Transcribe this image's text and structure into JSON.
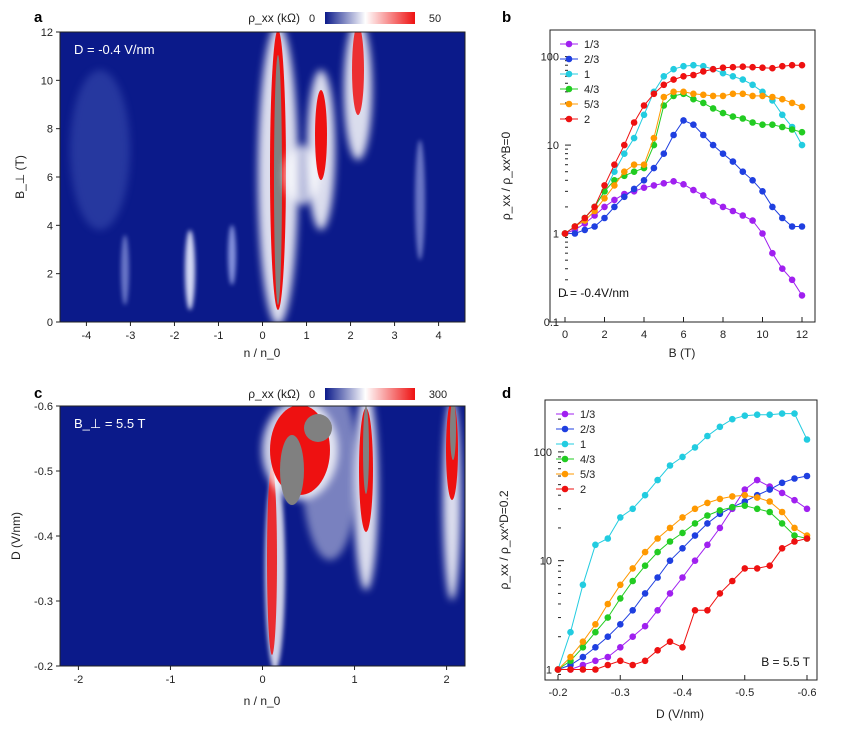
{
  "panels": {
    "a": {
      "label": "a",
      "annotation": "D = -0.4 V/nm",
      "colorbar": {
        "label": "ρ_xx (kΩ)",
        "min": "0",
        "max": "50"
      },
      "xlabel": "n / n_0",
      "ylabel": "B_⊥ (T)",
      "xticks": [
        "-4",
        "-3",
        "-2",
        "-1",
        "0",
        "1",
        "2",
        "3",
        "4"
      ],
      "yticks": [
        "0",
        "2",
        "4",
        "6",
        "8",
        "10",
        "12"
      ]
    },
    "b": {
      "label": "b",
      "annotation": "D = -0.4V/nm",
      "xlabel": "B (T)",
      "ylabel": "ρ_xx / ρ_xx^B=0",
      "xticks": [
        "0",
        "2",
        "4",
        "6",
        "8",
        "10",
        "12"
      ],
      "yticks": [
        "0.1",
        "1",
        "10",
        "100"
      ]
    },
    "c": {
      "label": "c",
      "annotation": "B_⊥ = 5.5 T",
      "colorbar": {
        "label": "ρ_xx (kΩ)",
        "min": "0",
        "max": "300"
      },
      "xlabel": "n / n_0",
      "ylabel": "D (V/nm)",
      "xticks": [
        "-2",
        "-1",
        "0",
        "1",
        "2"
      ],
      "yticks": [
        "-0.6",
        "-0.5",
        "-0.4",
        "-0.3",
        "-0.2"
      ]
    },
    "d": {
      "label": "d",
      "annotation": "B = 5.5 T",
      "xlabel": "D (V/nm)",
      "ylabel": "ρ_xx / ρ_xx^D=0.2",
      "xticks": [
        "-0.2",
        "-0.3",
        "-0.4",
        "-0.5",
        "-0.6"
      ],
      "yticks": [
        "1",
        "10",
        "100"
      ]
    }
  },
  "colors": {
    "1/3": "#a020f0",
    "2/3": "#1f3fe0",
    "1": "#22cce0",
    "4/3": "#22cc22",
    "5/3": "#ff9900",
    "2": "#ee1111",
    "map_low": "#0b1a8a",
    "map_high": "#ee1111",
    "map_over": "#808080"
  },
  "chart_data": [
    {
      "type": "heatmap",
      "panel": "a",
      "title": "",
      "xlabel": "n / n_0",
      "ylabel": "B_⊥ (T)",
      "xlim": [
        -4.6,
        4.6
      ],
      "ylim": [
        0,
        12
      ],
      "colorbar_range_kohm": [
        0,
        50
      ],
      "features": [
        {
          "n": 0,
          "B_range": [
            0,
            11.5
          ],
          "level": "over-range"
        },
        {
          "n": 1,
          "B_range": [
            3.5,
            10
          ],
          "level": "high"
        },
        {
          "n": 2,
          "B_range": [
            5,
            12
          ],
          "level": "high"
        },
        {
          "n": -2,
          "B_range": [
            0.5,
            3
          ],
          "level": "weak"
        }
      ]
    },
    {
      "type": "line",
      "panel": "b",
      "title": "",
      "xlabel": "B (T)",
      "ylabel": "ρ_xx / ρ_xx^B=0",
      "xlim": [
        0,
        12
      ],
      "ylim": [
        0.1,
        200
      ],
      "yscale": "log",
      "legend": "top-left",
      "x": [
        0,
        0.5,
        1,
        1.5,
        2,
        2.5,
        3,
        3.5,
        4,
        4.5,
        5,
        5.5,
        6,
        6.5,
        7,
        7.5,
        8,
        8.5,
        9,
        9.5,
        10,
        10.5,
        11,
        11.5,
        12
      ],
      "series": [
        {
          "name": "1/3",
          "values": [
            1,
            1.1,
            1.3,
            1.6,
            2.0,
            2.4,
            2.8,
            3.0,
            3.3,
            3.5,
            3.7,
            3.9,
            3.6,
            3.1,
            2.7,
            2.3,
            2.0,
            1.8,
            1.6,
            1.4,
            1.0,
            0.6,
            0.4,
            0.3,
            0.2
          ]
        },
        {
          "name": "2/3",
          "values": [
            1,
            1.0,
            1.1,
            1.2,
            1.5,
            2.0,
            2.6,
            3.2,
            4.0,
            5.5,
            8.0,
            13,
            19,
            17,
            13,
            10,
            8.0,
            6.5,
            5.0,
            4.0,
            3.0,
            2.0,
            1.5,
            1.2,
            1.2
          ]
        },
        {
          "name": "1",
          "values": [
            1,
            1.2,
            1.5,
            2.0,
            3.0,
            5.0,
            8.0,
            12,
            22,
            40,
            60,
            72,
            78,
            80,
            78,
            72,
            65,
            60,
            55,
            48,
            40,
            32,
            22,
            16,
            10
          ]
        },
        {
          "name": "4/3",
          "values": [
            1,
            1.2,
            1.5,
            2.0,
            3.0,
            4.0,
            4.5,
            5.0,
            5.5,
            10,
            28,
            36,
            38,
            33,
            30,
            26,
            23,
            21,
            20,
            18,
            17,
            17,
            16,
            15,
            14
          ]
        },
        {
          "name": "5/3",
          "values": [
            1,
            1.2,
            1.4,
            1.8,
            2.5,
            3.5,
            5.0,
            6.0,
            6.0,
            12,
            35,
            40,
            40,
            38,
            37,
            36,
            36,
            38,
            38,
            36,
            36,
            35,
            33,
            30,
            27
          ]
        },
        {
          "name": "2",
          "values": [
            1,
            1.2,
            1.5,
            2.0,
            3.5,
            6.0,
            10,
            18,
            28,
            38,
            48,
            55,
            60,
            62,
            68,
            72,
            75,
            76,
            77,
            76,
            75,
            74,
            78,
            80,
            80
          ]
        }
      ]
    },
    {
      "type": "heatmap",
      "panel": "c",
      "title": "",
      "xlabel": "n / n_0",
      "ylabel": "D (V/nm)",
      "xlim": [
        -2.2,
        2.2
      ],
      "ylim": [
        -0.2,
        -0.6
      ],
      "colorbar_range_kohm": [
        0,
        300
      ],
      "features": [
        {
          "n": 0,
          "D_range": [
            -0.22,
            -0.6
          ],
          "level": "high"
        },
        {
          "n": 0.3,
          "D_range": [
            -0.45,
            -0.6
          ],
          "level": "over-range"
        },
        {
          "n": 1,
          "D_range": [
            -0.35,
            -0.6
          ],
          "level": "high"
        },
        {
          "n": 1.95,
          "D_range": [
            -0.42,
            -0.6
          ],
          "level": "high"
        }
      ]
    },
    {
      "type": "line",
      "panel": "d",
      "title": "",
      "xlabel": "D (V/nm)",
      "ylabel": "ρ_xx / ρ_xx^D=0.2",
      "xlim": [
        -0.2,
        -0.6
      ],
      "ylim": [
        0.8,
        300
      ],
      "yscale": "log",
      "legend": "top-left",
      "x": [
        -0.2,
        -0.22,
        -0.24,
        -0.26,
        -0.28,
        -0.3,
        -0.32,
        -0.34,
        -0.36,
        -0.38,
        -0.4,
        -0.42,
        -0.44,
        -0.46,
        -0.48,
        -0.5,
        -0.52,
        -0.54,
        -0.56,
        -0.58,
        -0.6
      ],
      "series": [
        {
          "name": "1/3",
          "values": [
            1,
            1.0,
            1.1,
            1.2,
            1.3,
            1.6,
            2.0,
            2.5,
            3.5,
            5.0,
            7.0,
            10,
            14,
            20,
            30,
            45,
            55,
            48,
            42,
            36,
            30
          ]
        },
        {
          "name": "2/3",
          "values": [
            1,
            1.1,
            1.3,
            1.6,
            2.0,
            2.6,
            3.5,
            5.0,
            7.0,
            10,
            13,
            17,
            22,
            27,
            31,
            35,
            40,
            45,
            52,
            57,
            60
          ]
        },
        {
          "name": "1",
          "values": [
            1,
            2.2,
            6.0,
            14,
            16,
            25,
            30,
            40,
            55,
            75,
            90,
            110,
            140,
            170,
            200,
            215,
            220,
            220,
            225,
            225,
            130
          ]
        },
        {
          "name": "4/3",
          "values": [
            1,
            1.2,
            1.6,
            2.2,
            3.0,
            4.5,
            6.5,
            9.0,
            12,
            15,
            18,
            22,
            26,
            29,
            31,
            32,
            30,
            28,
            22,
            17,
            16
          ]
        },
        {
          "name": "5/3",
          "values": [
            1,
            1.3,
            1.8,
            2.6,
            4.0,
            6.0,
            8.5,
            12,
            16,
            20,
            25,
            30,
            34,
            37,
            39,
            40,
            38,
            35,
            28,
            20,
            17
          ]
        },
        {
          "name": "2",
          "values": [
            1,
            1.0,
            1.0,
            1.0,
            1.1,
            1.2,
            1.1,
            1.2,
            1.5,
            1.8,
            1.6,
            3.5,
            3.5,
            5.0,
            6.5,
            8.5,
            8.5,
            9.0,
            13,
            15,
            16
          ]
        }
      ]
    }
  ]
}
